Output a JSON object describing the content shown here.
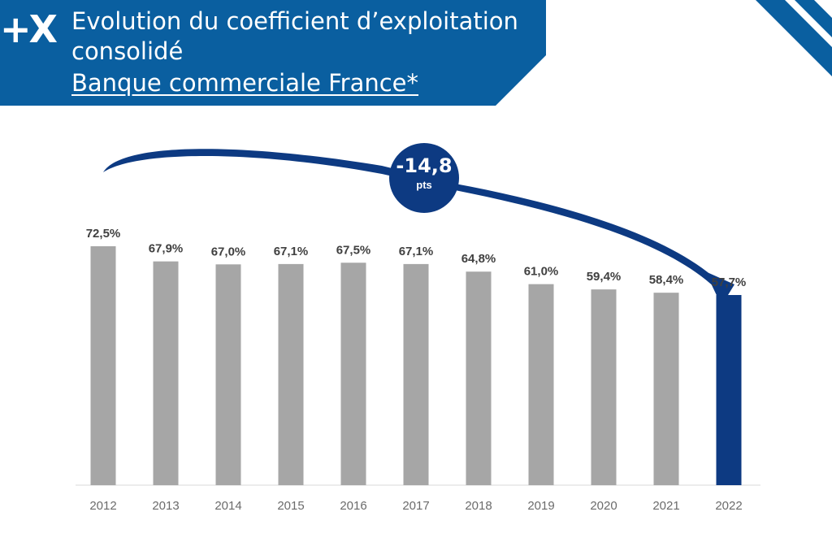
{
  "header": {
    "logo_text": "+X",
    "title": "Evolution du coefficient d’exploitation consolidé",
    "subtitle": "Banque commerciale France*"
  },
  "colors": {
    "banner": "#0a5fa0",
    "bar": "#a6a6a6",
    "highlight_bar": "#0d3a82",
    "arrow": "#0d3a82"
  },
  "chart_data": {
    "type": "bar",
    "categories": [
      "2012",
      "2013",
      "2014",
      "2015",
      "2016",
      "2017",
      "2018",
      "2019",
      "2020",
      "2021",
      "2022"
    ],
    "values": [
      72.5,
      67.9,
      67.0,
      67.1,
      67.5,
      67.1,
      64.8,
      61.0,
      59.4,
      58.4,
      57.7
    ],
    "data_labels": [
      "72,5%",
      "67,9%",
      "67,0%",
      "67,1%",
      "67,5%",
      "67,1%",
      "64,8%",
      "61,0%",
      "59,4%",
      "58,4%",
      "57,7%"
    ],
    "highlight_category": "2022",
    "ylim": [
      0,
      72.5
    ],
    "grid": false,
    "annotation": {
      "value": "-14,8",
      "unit": "pts"
    }
  }
}
